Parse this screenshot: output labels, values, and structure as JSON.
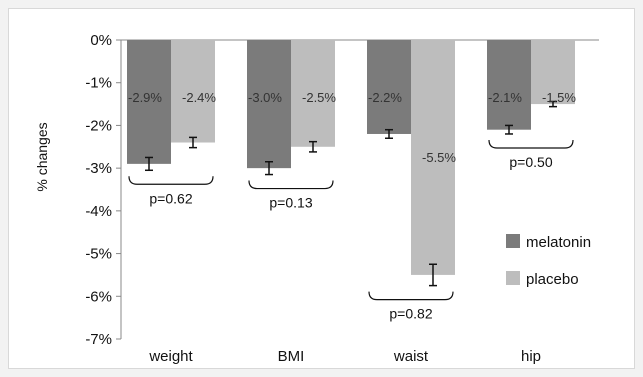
{
  "chart_data": {
    "type": "bar",
    "title": "",
    "xlabel": "",
    "ylabel": "% changes",
    "ylim": [
      -7,
      0
    ],
    "yticks": [
      "0%",
      "-1%",
      "-2%",
      "-3%",
      "-4%",
      "-5%",
      "-6%",
      "-7%"
    ],
    "categories": [
      "weight",
      "BMI",
      "waist",
      "hip"
    ],
    "series": [
      {
        "name": "melatonin",
        "color": "#7b7b7b",
        "values": [
          -2.9,
          -3.0,
          -2.2,
          -2.1
        ],
        "errors": [
          0.15,
          0.15,
          0.1,
          0.1
        ],
        "labels": [
          "-2.9%",
          "-3.0%",
          "-2.2%",
          "-2.1%"
        ]
      },
      {
        "name": "placebo",
        "color": "#bdbdbd",
        "values": [
          -2.4,
          -2.5,
          -5.5,
          -1.5
        ],
        "errors": [
          0.12,
          0.12,
          0.25,
          0.06
        ],
        "labels": [
          "-2.4%",
          "-2.5%",
          "-5.5%",
          "-1.5%"
        ]
      }
    ],
    "p_values": [
      "p=0.62",
      "p=0.13",
      "p=0.82",
      "p=0.50"
    ],
    "legend_position": "right",
    "grid": false
  }
}
